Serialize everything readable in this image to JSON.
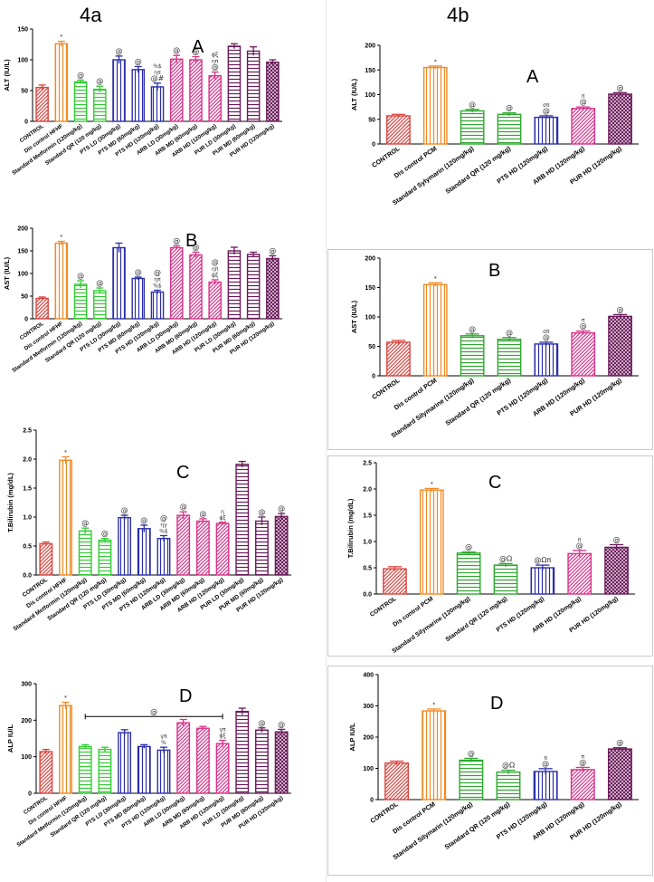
{
  "figure": {
    "left_title": "4a",
    "right_title": "4b"
  },
  "colors": {
    "control": "#d9453f",
    "dis": "#f08a24",
    "std": "#33cc33",
    "std2": "#2ea82e",
    "pts": "#2b2fa8",
    "arb": "#d8338a",
    "pur": "#6a1b5a"
  },
  "chart_data": [
    {
      "type": "bar",
      "letter": "A",
      "ylabel": "ALT (IU/L)",
      "ylim": [
        0,
        150
      ],
      "yticks": [
        0,
        50,
        100,
        150
      ],
      "categories": [
        "CONTROL",
        "Dis control HFHF",
        "Standard Metformin (120mg/kg)",
        "Standard QR (120 mg/kg)",
        "PTS LD (30mg/kg)",
        "PTS MD (60mg/kg)",
        "PTS HD (120mg/kg)",
        "ARB LD (30mg/kg)",
        "ARB MD (60mg/kg)",
        "ARB HD (120mg/kg)",
        "PUR LD (30mg/kg)",
        "PUR MD (60mg/kg)",
        "PUR HD (120mg/kg)"
      ],
      "values": [
        55,
        126,
        64,
        52,
        100,
        84,
        56,
        101,
        100,
        74,
        122,
        114,
        96
      ],
      "errors": [
        4,
        4,
        3,
        5,
        6,
        5,
        6,
        6,
        5,
        6,
        4,
        7,
        4
      ],
      "groups": [
        "control",
        "dis",
        "std",
        "std",
        "pts",
        "pts",
        "pts",
        "arb",
        "arb",
        "arb",
        "pur",
        "pur",
        "pur"
      ],
      "annotations": [
        "",
        "*",
        "@",
        "@",
        "@",
        "@",
        "%$ ηπ @#",
        "@",
        "@",
        "ϕξ ηπ @",
        "",
        "",
        ""
      ],
      "grid": false
    },
    {
      "type": "bar",
      "letter": "B",
      "ylabel": "AST (IU/L)",
      "ylim": [
        0,
        200
      ],
      "yticks": [
        0,
        50,
        100,
        150,
        200
      ],
      "categories": [
        "CONTROL",
        "Dis control HFHF",
        "Standard Metformin (120mg/kg)",
        "Standard QR (120 mg/kg)",
        "PTS LD (30mg/kg)",
        "PTS MD (60mg/kg)",
        "PTS HD (120mg/kg)",
        "ARB LD (30mg/kg)",
        "ARB MD (60mg/kg)",
        "ARB HD (120mg/kg)",
        "PUR LD (30mg/kg)",
        "PUR MD (60mg/kg)",
        "PUR HD (120mg/kg)"
      ],
      "values": [
        45,
        167,
        76,
        62,
        157,
        89,
        59,
        157,
        141,
        81,
        150,
        142,
        133
      ],
      "errors": [
        3,
        4,
        8,
        6,
        10,
        3,
        4,
        4,
        6,
        5,
        8,
        5,
        6
      ],
      "groups": [
        "control",
        "dis",
        "std",
        "std",
        "pts",
        "pts",
        "pts",
        "arb",
        "arb",
        "arb",
        "pur",
        "pur",
        "pur"
      ],
      "annotations": [
        "",
        "*",
        "@",
        "@",
        "",
        "@",
        "@ ηπ %$",
        "@",
        "@",
        "@ ηπ ϕξ",
        "",
        "",
        "@"
      ],
      "grid": false
    },
    {
      "type": "bar",
      "letter": "C",
      "ylabel": "T.Bilirubin (mg/dL)",
      "ylim": [
        0,
        2.5
      ],
      "yticks": [
        0.0,
        0.5,
        1.0,
        1.5,
        2.0,
        2.5
      ],
      "categories": [
        "CONTROL",
        "Dis control HFHF",
        "Standard Metformin (120mg/kg)",
        "Standard QR (120 mg/kg)",
        "PTS LD (30mg/kg)",
        "PTS MD (60mg/kg)",
        "PTS HD (120mg/kg)",
        "ARB LD (30mg/kg)",
        "ARB MD (60mg/kg)",
        "ARB HD (120mg/kg)",
        "PUR LD (30mg/kg)",
        "PUR MD (60mg/kg)",
        "PUR HD (120mg/kg)"
      ],
      "values": [
        0.54,
        1.98,
        0.76,
        0.6,
        0.99,
        0.8,
        0.63,
        1.03,
        0.93,
        0.89,
        1.91,
        0.93,
        1.01
      ],
      "errors": [
        0.03,
        0.06,
        0.05,
        0.03,
        0.04,
        0.06,
        0.05,
        0.06,
        0.04,
        0.02,
        0.05,
        0.07,
        0.05
      ],
      "groups": [
        "control",
        "dis",
        "std",
        "std",
        "pts",
        "pts",
        "pts",
        "arb",
        "arb",
        "arb",
        "pur",
        "pur",
        "pur"
      ],
      "annotations": [
        "",
        "*",
        "@",
        "@",
        "@",
        "@",
        "@ ηγ %$",
        "@",
        "@",
        "η ϕξ",
        "",
        "@",
        "@"
      ],
      "grid": false
    },
    {
      "type": "bar",
      "letter": "D",
      "ylabel": "ALP IU/L",
      "ylim": [
        0,
        300
      ],
      "yticks": [
        0,
        100,
        200,
        300
      ],
      "categories": [
        "CONTROL",
        "Dis control HFHF",
        "Standard Metformin (120mg/kg)",
        "Standard QR (120 mg/kg)",
        "PTS LD (30mg/kg)",
        "PTS MD (60mg/kg)",
        "PTS HD (120mg/kg)",
        "ARB LD (30mg/kg)",
        "ARB MD (60mg/kg)",
        "ARB HD (120mg/kg)",
        "PUR LD (30mg/kg)",
        "PUR MD (60mg/kg)",
        "PUR HD (120mg/kg)"
      ],
      "values": [
        114,
        240,
        128,
        120,
        166,
        128,
        118,
        193,
        178,
        136,
        224,
        173,
        168
      ],
      "errors": [
        6,
        9,
        5,
        6,
        8,
        5,
        8,
        9,
        5,
        9,
        9,
        6,
        7
      ],
      "groups": [
        "control",
        "dis",
        "std",
        "std",
        "pts",
        "pts",
        "pts",
        "arb",
        "arb",
        "arb",
        "pur",
        "pur",
        "pur"
      ],
      "annotations": [
        "",
        "*",
        "",
        "",
        "",
        "",
        "γπ %",
        "",
        "",
        "γπ ϕξ",
        "",
        "@",
        "@"
      ],
      "bracket": {
        "from": 2,
        "to": 9,
        "y": 210,
        "label": "@"
      },
      "grid": false
    },
    {
      "type": "bar",
      "letter": "A",
      "ylabel": "ALT (IU/L)",
      "ylim": [
        0,
        200
      ],
      "yticks": [
        0,
        50,
        100,
        150,
        200
      ],
      "categories": [
        "CONTROL",
        "Dis control PCM",
        "Standard Sylymarin (120mg/kg)",
        "Standard QR (120 mg/kg)",
        "PTS HD (120mg/kg)",
        "ARB HD (120mg/kg)",
        "PUR HD (120mg/kg)"
      ],
      "values": [
        57,
        155,
        67,
        60,
        54,
        72,
        101
      ],
      "errors": [
        3,
        3,
        3,
        3,
        3,
        3,
        3
      ],
      "groups": [
        "control",
        "dis",
        "std2",
        "std2",
        "pts",
        "arb",
        "pur"
      ],
      "annotations": [
        "",
        "*",
        "@",
        "@",
        "σπ @",
        "π @",
        "@"
      ],
      "grid": false
    },
    {
      "type": "bar",
      "letter": "B",
      "ylabel": "AST (IU/L)",
      "ylim": [
        0,
        200
      ],
      "yticks": [
        0,
        50,
        100,
        150,
        200
      ],
      "categories": [
        "CONTROL",
        "Dis control PCM",
        "Standard Silymarine (120mg/kg)",
        "Standard QR (120 mg/kg)",
        "PTS HD (120mg/kg)",
        "ARB HD (120mg/kg)",
        "PUR HD (120mg/kg)"
      ],
      "values": [
        57,
        155,
        68,
        62,
        54,
        73,
        101
      ],
      "errors": [
        3,
        3,
        3,
        3,
        3,
        3,
        3
      ],
      "groups": [
        "control",
        "dis",
        "std2",
        "std2",
        "pts",
        "arb",
        "pur"
      ],
      "annotations": [
        "",
        "*",
        "@",
        "@",
        "σπ @",
        "π @",
        "@"
      ],
      "grid": false
    },
    {
      "type": "bar",
      "letter": "C",
      "ylabel": "T.Bilirubin (mg/dL)",
      "ylim": [
        0,
        2.5
      ],
      "yticks": [
        0.0,
        0.5,
        1.0,
        1.5,
        2.0,
        2.5
      ],
      "categories": [
        "CONTROL",
        "Dis control PCM",
        "Standard Silymarine (120mg/kg)",
        "Standard QR (120 mg/kg)",
        "PTS HD (120mg/kg)",
        "ARB HD (120mg/kg)",
        "PUR HD (120mg/kg)"
      ],
      "values": [
        0.48,
        1.98,
        0.78,
        0.55,
        0.5,
        0.77,
        0.89
      ],
      "errors": [
        0.04,
        0.03,
        0.02,
        0.03,
        0.05,
        0.06,
        0.05
      ],
      "groups": [
        "control",
        "dis",
        "std2",
        "std2",
        "pts",
        "arb",
        "pur"
      ],
      "annotations": [
        "",
        "*",
        "@",
        "@Ω",
        "@Ωπ",
        "π @",
        "@"
      ],
      "grid": false
    },
    {
      "type": "bar",
      "letter": "D",
      "ylabel": "ALP IU/L",
      "ylim": [
        0,
        400
      ],
      "yticks": [
        0,
        100,
        200,
        300,
        400
      ],
      "categories": [
        "CONTROL",
        "Dis control PCM",
        "Standard Silymarin (120mg/kg)",
        "Standard QR (120 mg/kg)",
        "PTS HD (120mg/kg)",
        "ARB HD (120mg/kg)",
        "PUR HD (120mg/kg)"
      ],
      "values": [
        117,
        284,
        126,
        88,
        90,
        96,
        162
      ],
      "errors": [
        6,
        6,
        6,
        6,
        9,
        7,
        4
      ],
      "groups": [
        "control",
        "dis",
        "std2",
        "std2",
        "pts",
        "arb",
        "pur"
      ],
      "annotations": [
        "",
        "*",
        "@",
        "@Ω",
        "π @",
        "π @",
        "@"
      ],
      "grid": false
    }
  ]
}
